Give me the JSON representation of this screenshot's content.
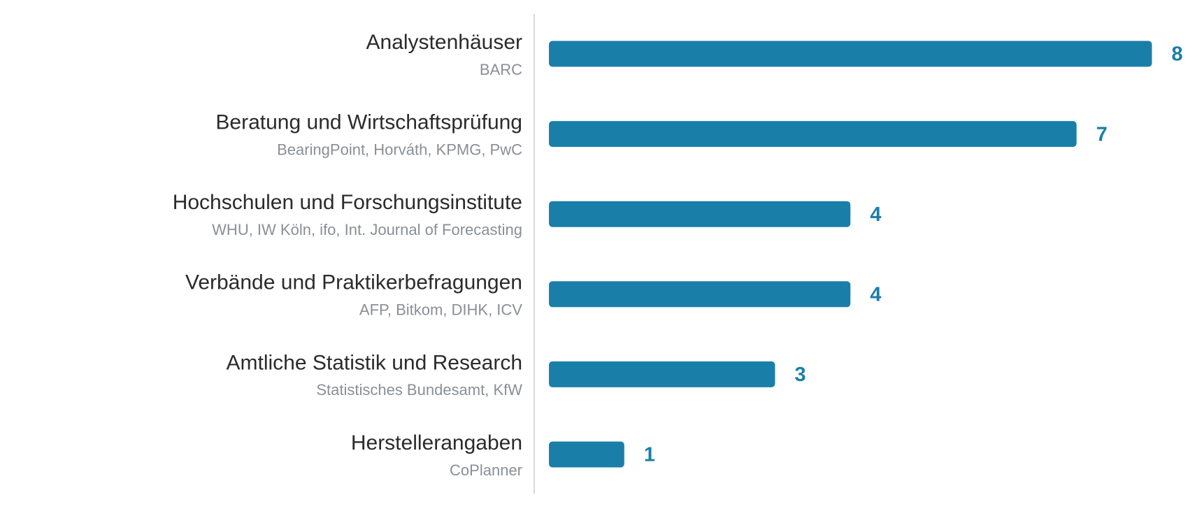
{
  "chart_data": {
    "type": "bar",
    "orientation": "horizontal",
    "categories": [
      "Analystenhäuser",
      "Beratung und Wirtschaftsprüfung",
      "Hochschulen und Forschungsinstitute",
      "Verbände und Praktikerbefragungen",
      "Amtliche Statistik und Research",
      "Herstellerangaben"
    ],
    "sublabels": [
      "BARC",
      "BearingPoint, Horváth, KPMG, PwC",
      "WHU, IW Köln, ifo, Int. Journal of Forecasting",
      "AFP, Bitkom, DIHK, ICV",
      "Statistisches Bundesamt, KfW",
      "CoPlanner"
    ],
    "values": [
      8,
      7,
      4,
      4,
      3,
      1
    ],
    "color": "#1a7fa8"
  }
}
